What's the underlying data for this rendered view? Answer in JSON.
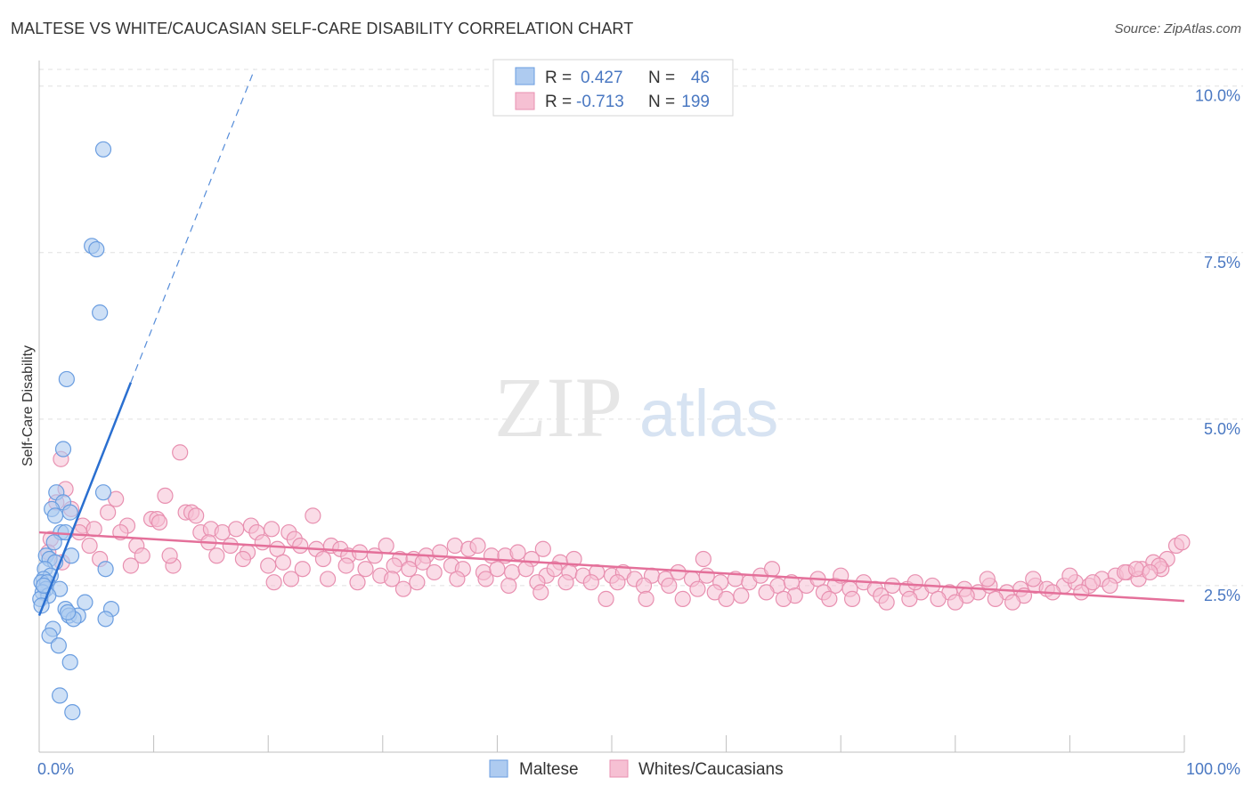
{
  "title": "MALTESE VS WHITE/CAUCASIAN SELF-CARE DISABILITY CORRELATION CHART",
  "source": "Source: ZipAtlas.com",
  "watermark": {
    "zip": "ZIP",
    "atlas": "atlas"
  },
  "colors": {
    "blue_fill": "#aecbf0",
    "blue_stroke": "#6a9de0",
    "blue_line": "#2a6fd0",
    "pink_fill": "#f6c0d3",
    "pink_stroke": "#e890b0",
    "pink_line": "#e4709a",
    "tick_text": "#4a78c2",
    "grid": "#e0e0e0"
  },
  "legend": {
    "row1": {
      "r_label": "R =",
      "r_value": "0.427",
      "n_label": "N =",
      "n_value": "46"
    },
    "row2": {
      "r_label": "R =",
      "r_value": "-0.713",
      "n_label": "N =",
      "n_value": "199"
    }
  },
  "chart_data": {
    "type": "scatter",
    "title": "MALTESE VS WHITE/CAUCASIAN SELF-CARE DISABILITY CORRELATION CHART",
    "xlabel": "",
    "ylabel": "Self-Care Disability",
    "xlim": [
      0,
      100
    ],
    "ylim": [
      0,
      10.25
    ],
    "x_tick_labels": {
      "left": "0.0%",
      "right": "100.0%"
    },
    "y_ticks": [
      {
        "value": 2.5,
        "label": "2.5%"
      },
      {
        "value": 5.0,
        "label": "5.0%"
      },
      {
        "value": 7.5,
        "label": "7.5%"
      },
      {
        "value": 10.0,
        "label": "10.0%"
      }
    ],
    "series": [
      {
        "name": "Maltese",
        "r": 0.427,
        "n": 46,
        "trend": {
          "x0": 0.0,
          "y0": 2.05,
          "x1": 8.0,
          "y1": 5.55,
          "dash_to_x": 18.8,
          "dash_to_y": 10.25
        },
        "points": [
          [
            5.6,
            9.05
          ],
          [
            4.6,
            7.6
          ],
          [
            5.0,
            7.55
          ],
          [
            5.3,
            6.6
          ],
          [
            2.4,
            5.6
          ],
          [
            2.1,
            4.55
          ],
          [
            1.5,
            3.9
          ],
          [
            5.6,
            3.9
          ],
          [
            2.1,
            3.75
          ],
          [
            1.1,
            3.65
          ],
          [
            1.4,
            3.55
          ],
          [
            2.7,
            3.6
          ],
          [
            1.9,
            3.3
          ],
          [
            2.3,
            3.3
          ],
          [
            1.3,
            3.15
          ],
          [
            0.6,
            2.95
          ],
          [
            0.9,
            2.9
          ],
          [
            2.8,
            2.95
          ],
          [
            1.4,
            2.85
          ],
          [
            0.5,
            2.75
          ],
          [
            5.8,
            2.75
          ],
          [
            1.0,
            2.65
          ],
          [
            0.4,
            2.6
          ],
          [
            0.2,
            2.55
          ],
          [
            0.7,
            2.55
          ],
          [
            0.6,
            2.45
          ],
          [
            1.8,
            2.45
          ],
          [
            0.3,
            2.4
          ],
          [
            0.8,
            2.35
          ],
          [
            0.1,
            2.3
          ],
          [
            4.0,
            2.25
          ],
          [
            0.2,
            2.2
          ],
          [
            6.3,
            2.15
          ],
          [
            2.3,
            2.15
          ],
          [
            2.6,
            2.05
          ],
          [
            3.4,
            2.05
          ],
          [
            5.8,
            2.0
          ],
          [
            3.0,
            2.0
          ],
          [
            1.2,
            1.85
          ],
          [
            0.9,
            1.75
          ],
          [
            1.7,
            1.6
          ],
          [
            2.7,
            1.35
          ],
          [
            1.8,
            0.85
          ],
          [
            2.9,
            0.6
          ],
          [
            0.4,
            2.5
          ],
          [
            2.5,
            2.1
          ]
        ]
      },
      {
        "name": "Whites/Caucasians",
        "r": -0.713,
        "n": 199,
        "trend": {
          "x0": 0.0,
          "y0": 3.3,
          "x1": 100.0,
          "y1": 2.27
        },
        "points": [
          [
            12.3,
            4.5
          ],
          [
            1.9,
            4.4
          ],
          [
            2.3,
            3.95
          ],
          [
            6.7,
            3.8
          ],
          [
            11.0,
            3.85
          ],
          [
            1.5,
            3.75
          ],
          [
            2.8,
            3.65
          ],
          [
            6.0,
            3.6
          ],
          [
            12.8,
            3.6
          ],
          [
            13.3,
            3.6
          ],
          [
            13.7,
            3.55
          ],
          [
            9.8,
            3.5
          ],
          [
            10.3,
            3.5
          ],
          [
            10.5,
            3.45
          ],
          [
            7.7,
            3.4
          ],
          [
            3.8,
            3.4
          ],
          [
            14.1,
            3.3
          ],
          [
            15.0,
            3.35
          ],
          [
            16.0,
            3.3
          ],
          [
            17.2,
            3.35
          ],
          [
            18.5,
            3.4
          ],
          [
            19.0,
            3.3
          ],
          [
            20.3,
            3.35
          ],
          [
            21.8,
            3.3
          ],
          [
            22.3,
            3.2
          ],
          [
            23.9,
            3.55
          ],
          [
            7.1,
            3.3
          ],
          [
            1.0,
            3.2
          ],
          [
            3.5,
            3.3
          ],
          [
            4.4,
            3.1
          ],
          [
            8.5,
            3.1
          ],
          [
            14.8,
            3.15
          ],
          [
            16.7,
            3.1
          ],
          [
            18.2,
            3.0
          ],
          [
            19.5,
            3.15
          ],
          [
            20.8,
            3.05
          ],
          [
            22.8,
            3.1
          ],
          [
            24.2,
            3.05
          ],
          [
            25.5,
            3.1
          ],
          [
            26.3,
            3.05
          ],
          [
            27.0,
            2.95
          ],
          [
            28.0,
            3.0
          ],
          [
            29.3,
            2.95
          ],
          [
            30.3,
            3.1
          ],
          [
            31.5,
            2.9
          ],
          [
            32.7,
            2.9
          ],
          [
            33.8,
            2.95
          ],
          [
            35.0,
            3.0
          ],
          [
            36.3,
            3.1
          ],
          [
            37.5,
            3.05
          ],
          [
            38.3,
            3.1
          ],
          [
            39.5,
            2.95
          ],
          [
            40.7,
            2.95
          ],
          [
            41.8,
            3.0
          ],
          [
            43.0,
            2.9
          ],
          [
            44.0,
            3.05
          ],
          [
            45.5,
            2.85
          ],
          [
            46.7,
            2.9
          ],
          [
            0.8,
            3.0
          ],
          [
            2.0,
            2.85
          ],
          [
            5.3,
            2.9
          ],
          [
            9.0,
            2.95
          ],
          [
            11.7,
            2.8
          ],
          [
            15.5,
            2.95
          ],
          [
            17.8,
            2.9
          ],
          [
            20.0,
            2.8
          ],
          [
            21.3,
            2.85
          ],
          [
            23.0,
            2.75
          ],
          [
            24.8,
            2.9
          ],
          [
            26.8,
            2.8
          ],
          [
            28.5,
            2.75
          ],
          [
            29.8,
            2.65
          ],
          [
            31.0,
            2.8
          ],
          [
            32.3,
            2.75
          ],
          [
            33.5,
            2.85
          ],
          [
            34.5,
            2.7
          ],
          [
            36.0,
            2.8
          ],
          [
            37.0,
            2.75
          ],
          [
            38.8,
            2.7
          ],
          [
            40.0,
            2.75
          ],
          [
            41.3,
            2.7
          ],
          [
            42.5,
            2.75
          ],
          [
            44.3,
            2.65
          ],
          [
            45.0,
            2.75
          ],
          [
            46.3,
            2.7
          ],
          [
            47.5,
            2.65
          ],
          [
            48.7,
            2.7
          ],
          [
            50.0,
            2.65
          ],
          [
            51.0,
            2.7
          ],
          [
            52.0,
            2.6
          ],
          [
            53.5,
            2.65
          ],
          [
            54.7,
            2.6
          ],
          [
            55.8,
            2.7
          ],
          [
            57.0,
            2.6
          ],
          [
            58.3,
            2.65
          ],
          [
            59.5,
            2.55
          ],
          [
            60.8,
            2.6
          ],
          [
            62.0,
            2.55
          ],
          [
            63.0,
            2.65
          ],
          [
            64.5,
            2.5
          ],
          [
            65.7,
            2.55
          ],
          [
            67.0,
            2.5
          ],
          [
            68.0,
            2.6
          ],
          [
            69.5,
            2.5
          ],
          [
            70.8,
            2.45
          ],
          [
            72.0,
            2.55
          ],
          [
            73.0,
            2.45
          ],
          [
            74.5,
            2.5
          ],
          [
            75.8,
            2.45
          ],
          [
            77.0,
            2.4
          ],
          [
            78.0,
            2.5
          ],
          [
            79.5,
            2.4
          ],
          [
            80.8,
            2.45
          ],
          [
            82.0,
            2.4
          ],
          [
            83.0,
            2.5
          ],
          [
            84.5,
            2.4
          ],
          [
            85.7,
            2.45
          ],
          [
            87.0,
            2.5
          ],
          [
            88.0,
            2.45
          ],
          [
            89.5,
            2.5
          ],
          [
            90.5,
            2.55
          ],
          [
            91.7,
            2.5
          ],
          [
            92.8,
            2.6
          ],
          [
            94.0,
            2.65
          ],
          [
            95.0,
            2.7
          ],
          [
            96.3,
            2.75
          ],
          [
            97.3,
            2.85
          ],
          [
            98.5,
            2.9
          ],
          [
            99.3,
            3.1
          ],
          [
            99.8,
            3.15
          ],
          [
            25.2,
            2.6
          ],
          [
            27.8,
            2.55
          ],
          [
            30.8,
            2.6
          ],
          [
            33.0,
            2.55
          ],
          [
            36.5,
            2.6
          ],
          [
            39.0,
            2.6
          ],
          [
            41.0,
            2.5
          ],
          [
            43.5,
            2.55
          ],
          [
            46.0,
            2.55
          ],
          [
            48.2,
            2.55
          ],
          [
            50.5,
            2.55
          ],
          [
            52.8,
            2.5
          ],
          [
            55.0,
            2.5
          ],
          [
            57.5,
            2.45
          ],
          [
            59.0,
            2.4
          ],
          [
            61.3,
            2.35
          ],
          [
            63.5,
            2.4
          ],
          [
            66.0,
            2.35
          ],
          [
            68.5,
            2.4
          ],
          [
            71.0,
            2.3
          ],
          [
            73.5,
            2.35
          ],
          [
            76.0,
            2.3
          ],
          [
            78.5,
            2.3
          ],
          [
            81.0,
            2.35
          ],
          [
            83.5,
            2.3
          ],
          [
            86.0,
            2.35
          ],
          [
            88.5,
            2.4
          ],
          [
            91.0,
            2.4
          ],
          [
            93.5,
            2.5
          ],
          [
            96.0,
            2.6
          ],
          [
            98.0,
            2.75
          ],
          [
            58.0,
            2.9
          ],
          [
            64.0,
            2.75
          ],
          [
            70.0,
            2.65
          ],
          [
            76.5,
            2.55
          ],
          [
            82.8,
            2.6
          ],
          [
            86.8,
            2.6
          ],
          [
            90.0,
            2.65
          ],
          [
            92.0,
            2.55
          ],
          [
            94.8,
            2.7
          ],
          [
            97.8,
            2.8
          ],
          [
            20.5,
            2.55
          ],
          [
            22.0,
            2.6
          ],
          [
            31.8,
            2.45
          ],
          [
            43.8,
            2.4
          ],
          [
            49.5,
            2.3
          ],
          [
            53.0,
            2.3
          ],
          [
            56.2,
            2.3
          ],
          [
            60.0,
            2.3
          ],
          [
            65.0,
            2.3
          ],
          [
            69.0,
            2.3
          ],
          [
            74.0,
            2.25
          ],
          [
            80.0,
            2.25
          ],
          [
            85.0,
            2.25
          ],
          [
            95.8,
            2.75
          ],
          [
            97.0,
            2.7
          ],
          [
            8.0,
            2.8
          ],
          [
            11.4,
            2.95
          ],
          [
            4.8,
            3.35
          ]
        ]
      }
    ]
  },
  "bottom_legend": {
    "items": [
      "Maltese",
      "Whites/Caucasians"
    ]
  }
}
